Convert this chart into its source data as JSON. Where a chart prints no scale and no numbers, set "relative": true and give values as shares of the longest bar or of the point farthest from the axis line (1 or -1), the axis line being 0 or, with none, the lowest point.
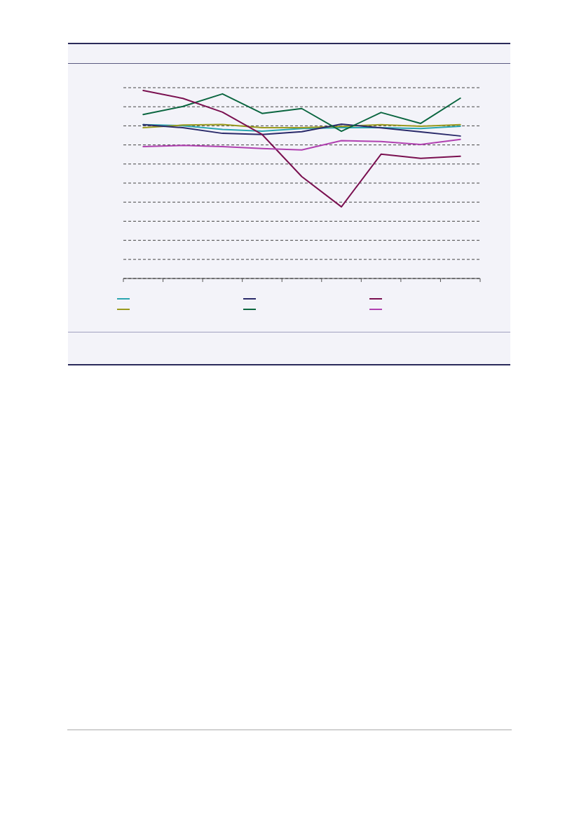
{
  "chart_data": {
    "type": "line",
    "relative": true,
    "categories": [
      null,
      null,
      null,
      null,
      null,
      null,
      null,
      null,
      null
    ],
    "series": [
      {
        "color": "#2aa5b0",
        "values": [
          0.818,
          0.813,
          0.793,
          0.784,
          0.798,
          0.802,
          0.802,
          0.798,
          0.81
        ]
      },
      {
        "color": "#9a9a1e",
        "values": [
          0.802,
          0.816,
          0.819,
          0.802,
          0.802,
          0.809,
          0.818,
          0.81,
          0.818
        ]
      },
      {
        "color": "#2a2a6a",
        "values": [
          0.818,
          0.802,
          0.772,
          0.766,
          0.781,
          0.821,
          0.801,
          0.78,
          0.758
        ]
      },
      {
        "color": "#0b6640",
        "values": [
          0.872,
          0.915,
          0.982,
          0.878,
          0.904,
          0.783,
          0.883,
          0.825,
          0.959
        ]
      },
      {
        "color": "#7a1050",
        "values": [
          1,
          0.958,
          0.885,
          0.766,
          0.542,
          0.381,
          0.661,
          0.639,
          0.65
        ]
      },
      {
        "color": "#b040b0",
        "values": [
          0.702,
          0.708,
          0.702,
          0.691,
          0.684,
          0.733,
          0.729,
          0.713,
          0.74
        ]
      }
    ],
    "grid": "y",
    "marker": "none",
    "line_style": "solid"
  }
}
